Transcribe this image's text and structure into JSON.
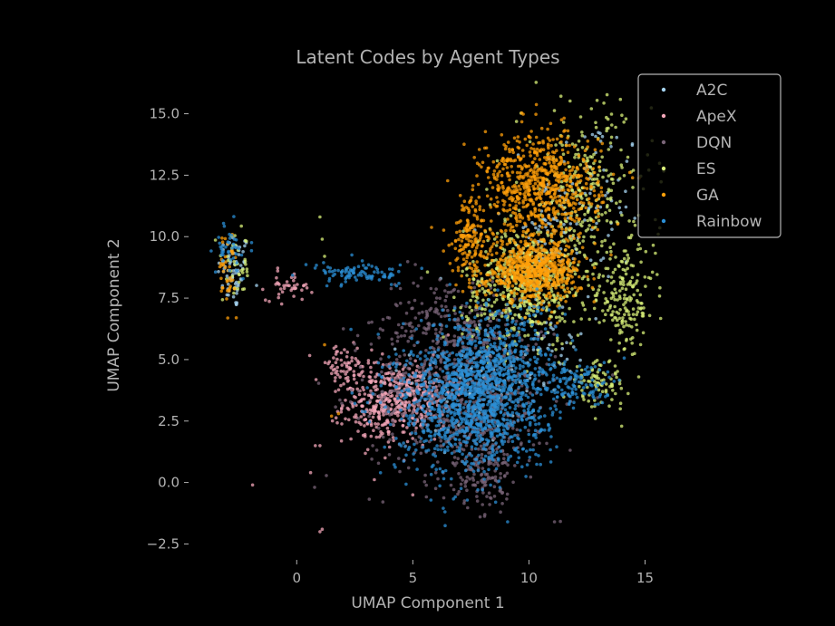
{
  "chart_data": {
    "type": "scatter",
    "title": "Latent Codes by Agent Types",
    "xlabel": "UMAP Component 1",
    "ylabel": "UMAP Component 2",
    "xlim": [
      -4.5,
      15.8
    ],
    "ylim": [
      -3.0,
      16.2
    ],
    "xticks": [
      0,
      5,
      10,
      15
    ],
    "xtick_labels": [
      "0",
      "5",
      "10",
      "15"
    ],
    "yticks": [
      -2.5,
      0.0,
      2.5,
      5.0,
      7.5,
      10.0,
      12.5,
      15.0
    ],
    "ytick_labels": [
      "−2.5",
      "0.0",
      "2.5",
      "5.0",
      "7.5",
      "10.0",
      "12.5",
      "15.0"
    ],
    "grid": false,
    "legend_position": "top-right",
    "background": "#000000",
    "text_color": "#b3b3b3",
    "series": [
      {
        "name": "A2C",
        "color": "#a6d4f2",
        "clusters": [
          {
            "cx": -2.7,
            "cy": 8.6,
            "sx": 0.35,
            "sy": 0.8,
            "n": 70
          },
          {
            "cx": 10.5,
            "cy": 9.8,
            "sx": 0.7,
            "sy": 1.0,
            "n": 60
          },
          {
            "cx": 12.5,
            "cy": 11.5,
            "sx": 1.2,
            "sy": 1.8,
            "n": 90
          },
          {
            "cx": 7.5,
            "cy": 4.0,
            "sx": 1.5,
            "sy": 1.2,
            "n": 90
          },
          {
            "cx": 11.0,
            "cy": 6.0,
            "sx": 0.8,
            "sy": 0.8,
            "n": 40
          }
        ],
        "points": [
          [
            6.2,
            8.3
          ],
          [
            4.5,
            3.2
          ],
          [
            10.8,
            8.5
          ]
        ]
      },
      {
        "name": "ApeX",
        "color": "#f4a7b9",
        "clusters": [
          {
            "cx": 3.8,
            "cy": 3.2,
            "sx": 0.9,
            "sy": 0.8,
            "n": 320
          },
          {
            "cx": 2.0,
            "cy": 4.6,
            "sx": 0.6,
            "sy": 0.5,
            "n": 70
          },
          {
            "cx": -0.3,
            "cy": 8.0,
            "sx": 0.5,
            "sy": 0.3,
            "n": 40
          },
          {
            "cx": 5.2,
            "cy": 3.6,
            "sx": 0.8,
            "sy": 0.7,
            "n": 140
          }
        ],
        "points": [
          [
            -1.9,
            -0.1
          ],
          [
            0.8,
            1.5
          ],
          [
            1.0,
            1.5
          ],
          [
            0.6,
            0.4
          ],
          [
            5.0,
            -0.5
          ],
          [
            1.1,
            -1.9
          ],
          [
            1.0,
            -2.0
          ]
        ]
      },
      {
        "name": "DQN",
        "color": "#7a6478",
        "clusters": [
          {
            "cx": 7.2,
            "cy": 3.6,
            "sx": 2.0,
            "sy": 1.8,
            "n": 650
          },
          {
            "cx": 6.5,
            "cy": 6.5,
            "sx": 1.5,
            "sy": 1.0,
            "n": 180
          },
          {
            "cx": 8.0,
            "cy": 0.5,
            "sx": 0.6,
            "sy": 0.8,
            "n": 120
          }
        ],
        "points": [
          [
            8.1,
            -1.3
          ],
          [
            11.1,
            -1.6
          ],
          [
            8.0,
            -0.9
          ],
          [
            7.9,
            -1.4
          ]
        ]
      },
      {
        "name": "ES",
        "color": "#d9f27a",
        "clusters": [
          {
            "cx": 9.8,
            "cy": 8.0,
            "sx": 1.3,
            "sy": 1.2,
            "n": 500
          },
          {
            "cx": 12.5,
            "cy": 11.5,
            "sx": 1.4,
            "sy": 2.0,
            "n": 300
          },
          {
            "cx": 14.2,
            "cy": 7.4,
            "sx": 0.6,
            "sy": 1.0,
            "n": 160
          },
          {
            "cx": 13.0,
            "cy": 4.0,
            "sx": 0.6,
            "sy": 0.5,
            "n": 80
          },
          {
            "cx": -2.6,
            "cy": 8.7,
            "sx": 0.3,
            "sy": 0.7,
            "n": 40
          }
        ],
        "points": [
          [
            1.0,
            10.8
          ],
          [
            1.1,
            9.9
          ],
          [
            1.2,
            9.2
          ]
        ]
      },
      {
        "name": "GA",
        "color": "#ff9f0a",
        "clusters": [
          {
            "cx": 10.2,
            "cy": 8.6,
            "sx": 1.0,
            "sy": 0.6,
            "n": 650
          },
          {
            "cx": 10.5,
            "cy": 12.0,
            "sx": 1.3,
            "sy": 1.1,
            "n": 700
          },
          {
            "cx": 7.5,
            "cy": 10.0,
            "sx": 0.4,
            "sy": 0.8,
            "n": 150
          },
          {
            "cx": -3.0,
            "cy": 8.6,
            "sx": 0.2,
            "sy": 0.7,
            "n": 40
          }
        ],
        "points": [
          [
            1.2,
            5.6
          ],
          [
            1.5,
            2.7
          ],
          [
            1.8,
            2.8
          ]
        ]
      },
      {
        "name": "Rainbow",
        "color": "#2b8fd6",
        "clusters": [
          {
            "cx": 7.5,
            "cy": 3.2,
            "sx": 1.6,
            "sy": 1.4,
            "n": 1100
          },
          {
            "cx": 8.5,
            "cy": 5.0,
            "sx": 1.3,
            "sy": 1.2,
            "n": 400
          },
          {
            "cx": 12.0,
            "cy": 4.0,
            "sx": 0.9,
            "sy": 0.5,
            "n": 120
          },
          {
            "cx": 2.8,
            "cy": 8.5,
            "sx": 1.0,
            "sy": 0.2,
            "n": 90
          },
          {
            "cx": -2.9,
            "cy": 9.5,
            "sx": 0.3,
            "sy": 0.5,
            "n": 40
          }
        ],
        "points": [
          [
            1.3,
            8.0
          ],
          [
            1.4,
            8.2
          ],
          [
            4.3,
            8.0
          ],
          [
            4.4,
            8.1
          ],
          [
            8.0,
            -0.3
          ],
          [
            7.8,
            -0.3
          ]
        ]
      }
    ]
  }
}
